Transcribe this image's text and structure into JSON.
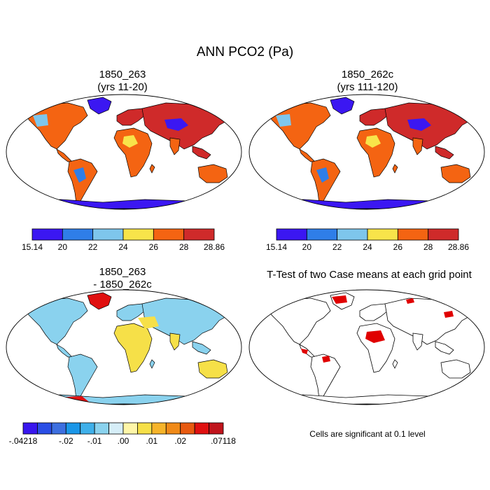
{
  "figure": {
    "title": "ANN PCO2 (Pa)"
  },
  "panels": {
    "top_left": {
      "title_line1": "1850_263",
      "title_line2": "(yrs 11-20)"
    },
    "top_right": {
      "title_line1": "1850_262c",
      "title_line2": "(yrs 111-120)"
    },
    "bottom_left": {
      "title_line1": "1850_263",
      "title_line2": "- 1850_262c"
    },
    "bottom_right": {
      "title_line1": "T-Test of two Case means at each grid point"
    }
  },
  "colorbars": {
    "absolute": {
      "labels": [
        "15.14",
        "20",
        "22",
        "24",
        "26",
        "28",
        "28.86"
      ],
      "colors": [
        "#3b17f2",
        "#2f7ee8",
        "#7ec6ec",
        "#f8e44a",
        "#f46412",
        "#cf2a2a"
      ]
    },
    "difference": {
      "labels": [
        "-.04218",
        "-.02",
        "-.01",
        ".00",
        ".01",
        ".02",
        ".07118"
      ],
      "colors": [
        "#3816ee",
        "#2a4ee6",
        "#3d6fe0",
        "#1a96e8",
        "#3fb0ea",
        "#8ad2ee",
        "#d6eef8",
        "#fff6a8",
        "#f6e048",
        "#f6b42a",
        "#f08a18",
        "#e85a10",
        "#e01010",
        "#c0141c"
      ]
    }
  },
  "footnote": "Cells are significant at 0.1 level",
  "map_colors": {
    "land_high": "#f46412",
    "land_very_high": "#cf2a2a",
    "land_mid": "#f8e44a",
    "land_low": "#7ec6ec",
    "land_lower": "#2f7ee8",
    "land_lowest": "#3b17f2",
    "diff_neg": "#8ad2ee",
    "diff_pos": "#f6e048",
    "diff_strong_pos": "#e01010",
    "significant": "#e00000"
  }
}
